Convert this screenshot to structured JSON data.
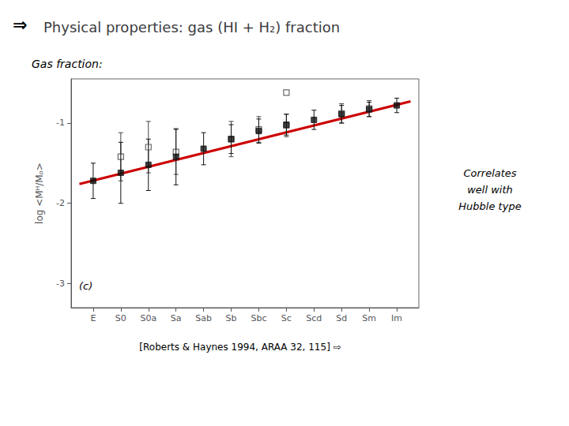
{
  "chart_data": {
    "type": "scatter",
    "title": "Physical properties: gas (HI + H₂) fraction",
    "annotations": [
      "⇒",
      "Gas fraction:",
      "(c)",
      "Correlates\nwell with\nHubble type",
      "[Roberts & Haynes 1994, ARAA 32, 115] ⇨"
    ],
    "y_label": "log <Mᴴ/Mₚ>",
    "xlim": [
      -0.8,
      11.8
    ],
    "xticks": [
      {
        "value": 0,
        "label": "E"
      },
      {
        "value": 1,
        "label": "S0"
      },
      {
        "value": 2,
        "label": "S0a"
      },
      {
        "value": 3,
        "label": "Sa"
      },
      {
        "value": 4,
        "label": "Sab"
      },
      {
        "value": 5,
        "label": "Sb"
      },
      {
        "value": 6,
        "label": "Sbc"
      },
      {
        "value": 7,
        "label": "Sc"
      },
      {
        "value": 8,
        "label": "Scd"
      },
      {
        "value": 9,
        "label": "Sd"
      },
      {
        "value": 10,
        "label": "Sm"
      },
      {
        "value": 11,
        "label": "Im"
      }
    ],
    "ylim": [
      -3.3,
      -0.45
    ],
    "yticks": [
      -3,
      -2,
      -1
    ],
    "grid": false,
    "series": [
      {
        "type": "line",
        "color": "#cc0000",
        "line_style": "solid",
        "x": [
          -0.5,
          11.5
        ],
        "values": [
          -1.76,
          -0.73
        ]
      },
      {
        "type": "scatter",
        "color": "#444444",
        "marker": "open square",
        "x": [
          0,
          1,
          2,
          3,
          4,
          5,
          6,
          7,
          8,
          9,
          10,
          11
        ],
        "values": [
          null,
          -1.42,
          -1.3,
          -1.36,
          null,
          -1.2,
          -1.08,
          -1.03,
          null,
          -0.88,
          -0.82,
          null
        ],
        "errors": [
          null,
          0.3,
          0.32,
          0.28,
          null,
          0.22,
          0.16,
          0.14,
          null,
          0.12,
          0.1,
          null
        ]
      },
      {
        "type": "scatter",
        "color": "#444444",
        "marker": "open square",
        "x": [
          7
        ],
        "values": [
          -0.62
        ]
      },
      {
        "type": "scatter",
        "color": "#111111",
        "marker": "square",
        "x": [
          0,
          1,
          2,
          3,
          4,
          5,
          6,
          7,
          8,
          9,
          10,
          11
        ],
        "values": [
          -1.72,
          -1.62,
          -1.52,
          -1.42,
          -1.32,
          -1.2,
          -1.1,
          -1.02,
          -0.96,
          -0.89,
          -0.83,
          -0.78
        ],
        "errors": [
          0.22,
          0.38,
          0.32,
          0.35,
          0.2,
          0.18,
          0.15,
          0.13,
          0.12,
          0.11,
          0.09,
          0.09
        ]
      }
    ]
  }
}
